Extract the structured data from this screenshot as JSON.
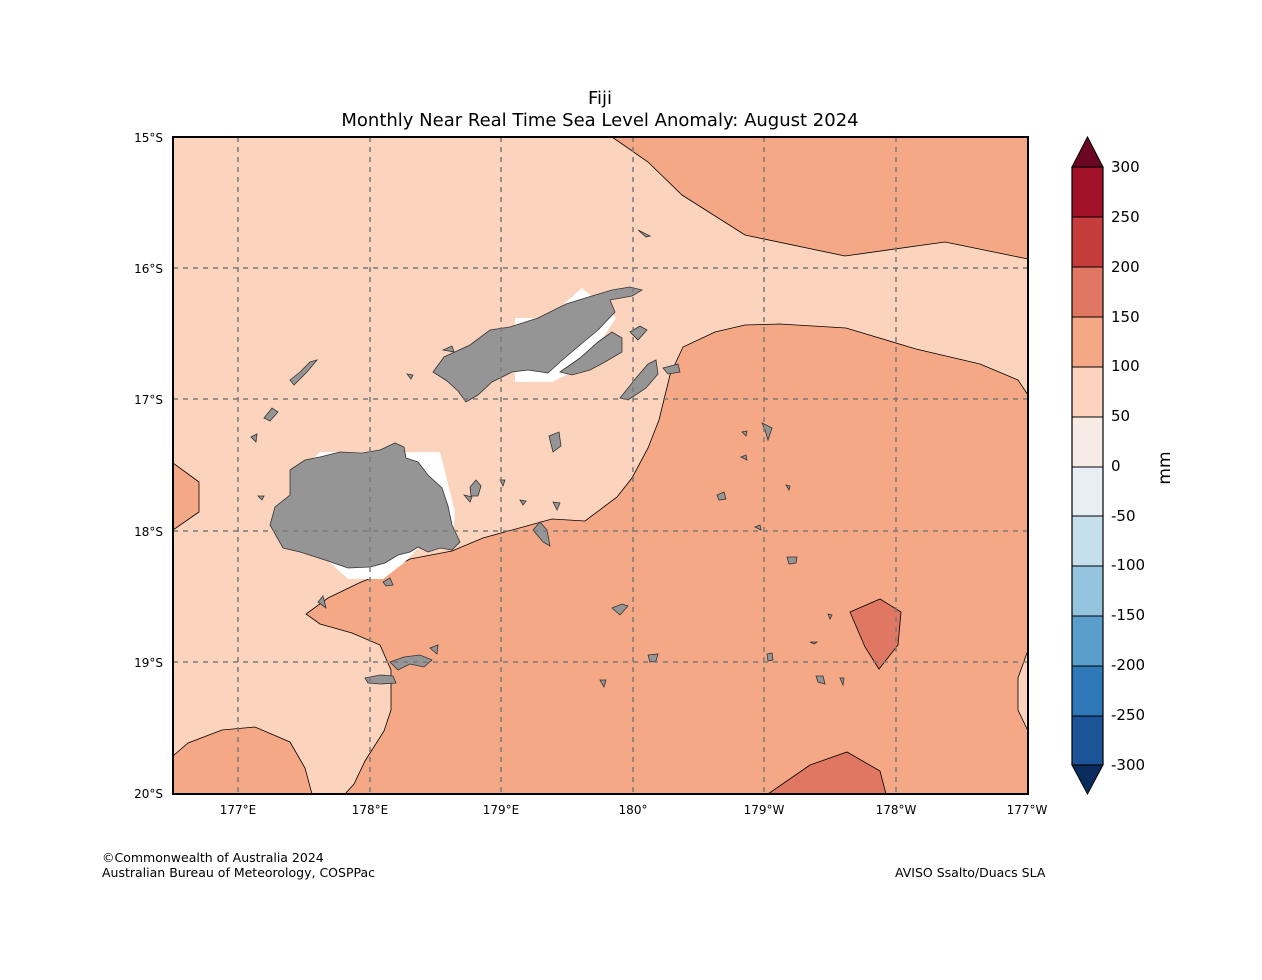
{
  "header": {
    "title": "Fiji",
    "subtitle": "Monthly Near Real Time Sea Level Anomaly: August 2024"
  },
  "map": {
    "lat_labels": [
      "15°S",
      "16°S",
      "17°S",
      "18°S",
      "19°S",
      "20°S"
    ],
    "lon_labels": [
      "177°E",
      "178°E",
      "179°E",
      "180°",
      "179°W",
      "178°W",
      "177°W"
    ],
    "colors": {
      "land": "#959595",
      "band_50_100": "#fcd4bd",
      "band_100_150": "#f4a886",
      "band_150_200": "#e07762",
      "no_data": "#ffffff",
      "grid": "#7a7a7a"
    }
  },
  "colorbar": {
    "unit": "mm",
    "ticks": [
      "300",
      "250",
      "200",
      "150",
      "100",
      "50",
      "0",
      "-50",
      "-100",
      "-150",
      "-200",
      "-250",
      "-300"
    ],
    "colors": [
      "#6b0722",
      "#a11228",
      "#c63c3b",
      "#e07762",
      "#f4a886",
      "#fcd4bd",
      "#f6ebe5",
      "#e7eff4",
      "#c5dfed",
      "#94c4de",
      "#5a9fcb",
      "#3079b9",
      "#1b5597",
      "#0a2d5e"
    ]
  },
  "footer": {
    "copyright": "©Commonwealth of Australia 2024",
    "agency": "Australian Bureau of Meteorology, COSPPac",
    "source": "AVISO Ssalto/Duacs SLA"
  }
}
